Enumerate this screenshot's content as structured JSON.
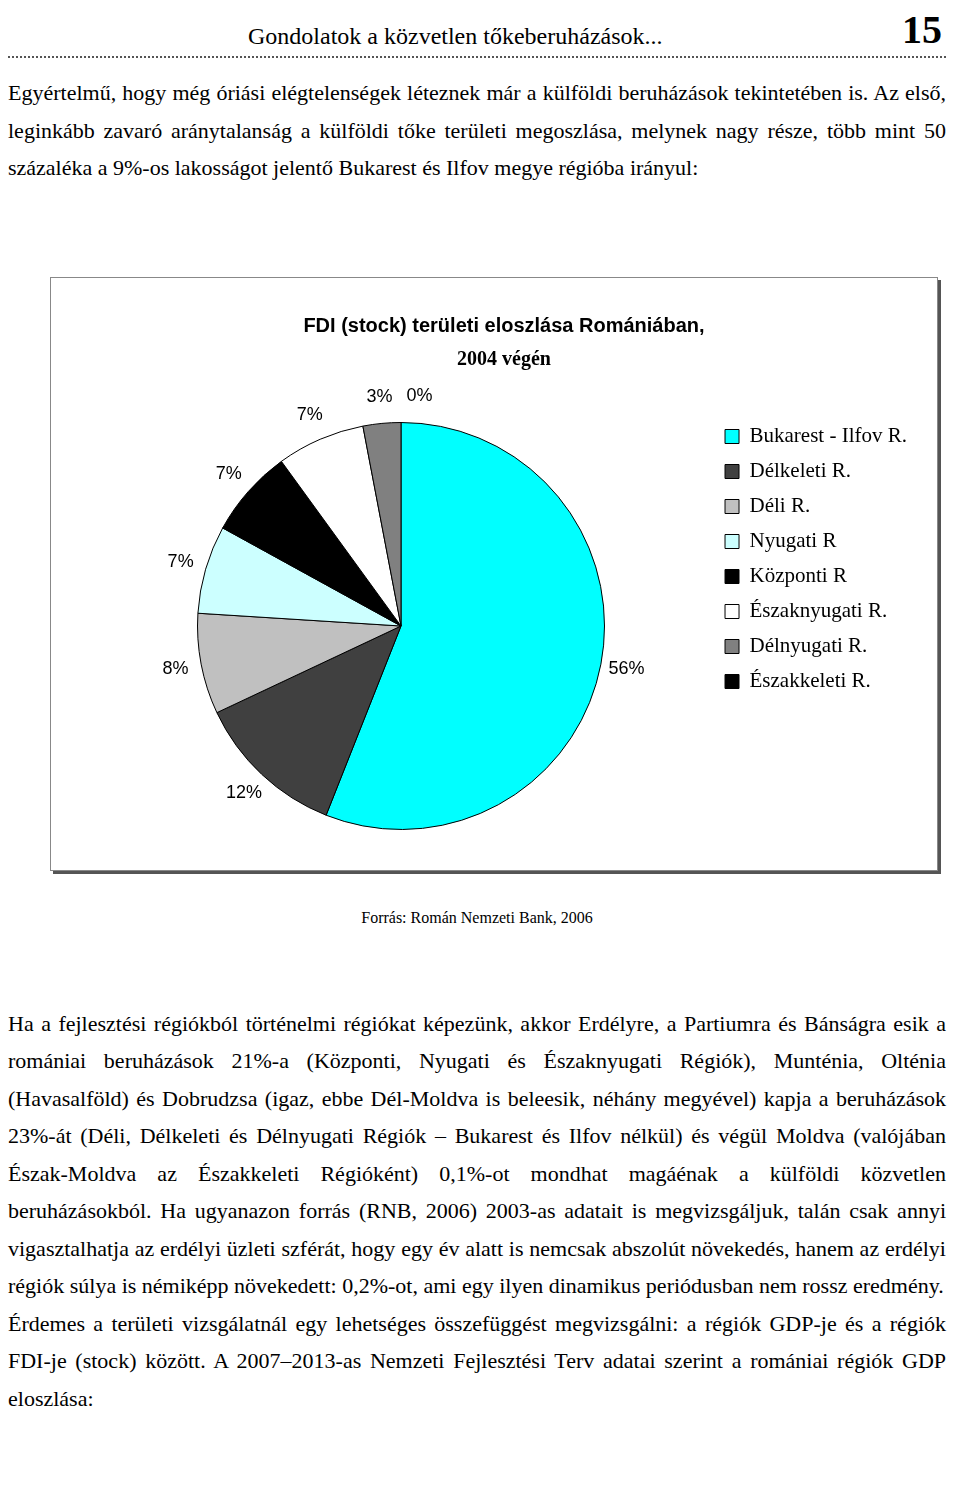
{
  "header": {
    "title": "Gondolatok a közvetlen tőkeberuházások...",
    "page": "15"
  },
  "paragraphs_before": [
    "Egyértelmű, hogy még óriási elégtelenségek léteznek már a külföldi beruházások tekintetében is. Az első, leginkább zavaró aránytalanság a külföldi tőke területi megoszlása, melynek nagy része, több mint 50 százaléka a 9%-os lakosságot jelentő Bukarest és Ilfov megye régióba irányul:"
  ],
  "chart_data": {
    "type": "pie",
    "title": "FDI (stock) területi eloszlása Romániában,",
    "subtitle": "2004 végén",
    "categories": [
      "Bukarest - Ilfov R.",
      "Délkeleti R.",
      "Déli R.",
      "Nyugati R",
      "Központi R",
      "Északnyugati R.",
      "Délnyugati R.",
      "Északkeleti R."
    ],
    "values": [
      56,
      12,
      8,
      7,
      7,
      7,
      3,
      0
    ],
    "value_labels": [
      "56%",
      "12%",
      "8%",
      "7%",
      "7%",
      "7%",
      "3%",
      "0%"
    ],
    "colors": [
      "#00ffff",
      "#404040",
      "#c0c0c0",
      "#ccffff",
      "#000000",
      "#ffffff",
      "#808080",
      "#000000"
    ],
    "legend": "right",
    "data_labels": true
  },
  "source": "Forrás: Román Nemzeti Bank, 2006",
  "paragraphs_after": [
    "Ha a fejlesztési régiókból történelmi régiókat képezünk, akkor Erdélyre, a Partiumra és Bánságra esik a romániai beruházások 21%-a (Központi, Nyugati és Északnyugati Régiók), Munténia, Olténia (Havasalföld) és Dobrudzsa (igaz, ebbe Dél-Moldva is beleesik, néhány megyével) kapja a beruházások 23%-át (Déli, Délkeleti és Délnyugati Régiók – Bukarest és Ilfov nélkül) és végül Moldva (valójában Észak-Moldva az Északkeleti Régióként) 0,1%-ot mondhat magáénak a külföldi közvetlen beruházásokból. Ha ugyanazon forrás (RNB, 2006) 2003-as adatait is megvizsgáljuk, talán csak annyi vigasztalhatja az erdélyi üzleti szférát, hogy egy év alatt is nemcsak abszolút növekedés, hanem az erdélyi régiók súlya is némiképp növekedett: 0,2%-ot, ami egy ilyen dinamikus periódusban nem rossz eredmény.",
    "Érdemes a területi vizsgálatnál egy lehetséges összefüggést megvizsgálni: a régiók GDP-je és a régiók FDI-je (stock) között. A 2007–2013-as Nemzeti Fejlesztési Terv adatai szerint a romániai régiók GDP eloszlása:"
  ]
}
